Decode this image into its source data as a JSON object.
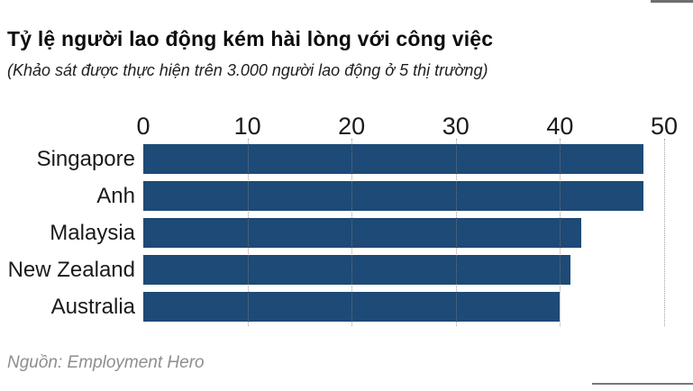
{
  "chart_data": {
    "type": "bar",
    "orientation": "horizontal",
    "title": "Tỷ lệ người lao động kém hài lòng với công việc",
    "subtitle": "(Khảo sát được thực hiện trên 3.000 người lao động ở 5 thị trường)",
    "source": "Nguồn: Employment Hero",
    "categories": [
      "Singapore",
      "Anh",
      "Malaysia",
      "New Zealand",
      "Australia"
    ],
    "values": [
      48,
      48,
      42,
      41,
      40
    ],
    "xlim": [
      0,
      50
    ],
    "xticks": [
      "0",
      "10",
      "20",
      "30",
      "40",
      "50"
    ],
    "xlabel": "",
    "ylabel": "",
    "grid": "vertical-dotted",
    "legend": "none",
    "bar_color": "#1d4a76",
    "text_color": "#1a1a1a",
    "source_color": "#8e8e8e"
  }
}
